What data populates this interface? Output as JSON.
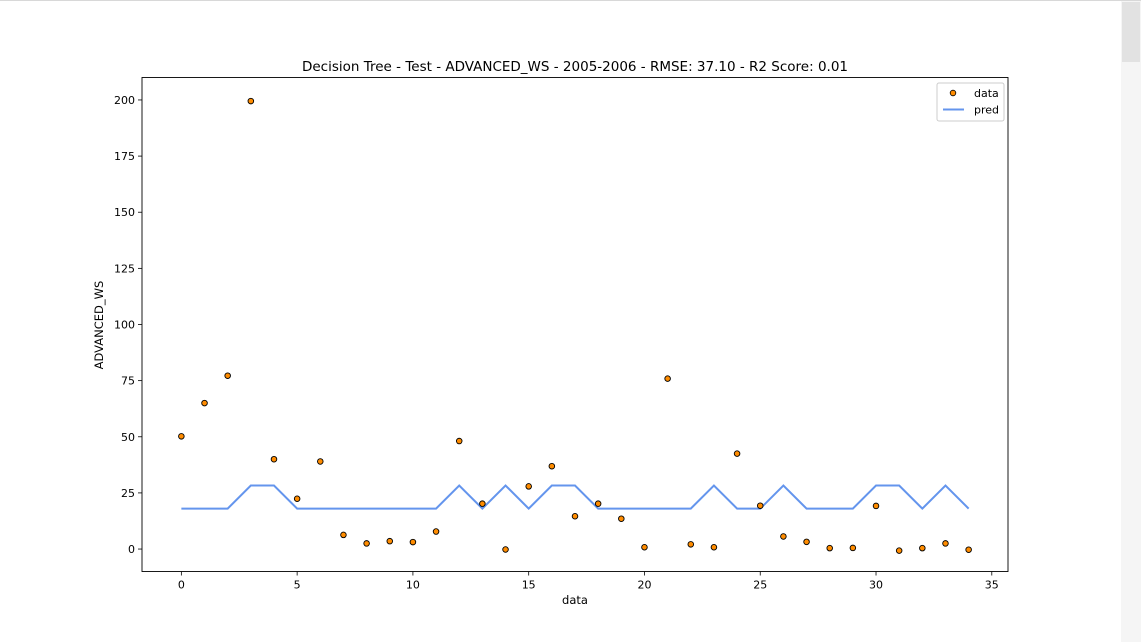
{
  "chart_data": {
    "type": "scatter",
    "title": "Decision Tree - Test - ADVANCED_WS - 2005-2006 - RMSE: 37.10 - R2 Score: 0.01",
    "xlabel": "data",
    "ylabel": "ADVANCED_WS",
    "xlim": [
      -1.7,
      35.7
    ],
    "ylim": [
      -10,
      210
    ],
    "xticks": [
      0,
      5,
      10,
      15,
      20,
      25,
      30,
      35
    ],
    "yticks": [
      0,
      25,
      50,
      75,
      100,
      125,
      150,
      175,
      200
    ],
    "legend_position": "top-right",
    "series": [
      {
        "name": "data",
        "kind": "scatter",
        "color": "#ff8c00",
        "edge_color": "#000000",
        "x": [
          0,
          1,
          2,
          3,
          4,
          5,
          6,
          7,
          8,
          9,
          10,
          11,
          12,
          13,
          14,
          15,
          16,
          17,
          18,
          19,
          20,
          21,
          22,
          23,
          24,
          25,
          26,
          27,
          28,
          29,
          30,
          31,
          32,
          33,
          34
        ],
        "y": [
          50.2,
          65.0,
          77.2,
          199.5,
          40.0,
          22.4,
          39.0,
          6.3,
          2.5,
          3.5,
          3.1,
          7.8,
          48.1,
          20.2,
          -0.2,
          27.9,
          36.9,
          14.6,
          20.2,
          13.5,
          0.8,
          75.9,
          2.1,
          0.8,
          42.5,
          19.3,
          5.6,
          3.2,
          0.4,
          0.5,
          19.2,
          -0.7,
          0.4,
          2.5,
          -0.3
        ]
      },
      {
        "name": "pred",
        "kind": "line",
        "color": "#6495ed",
        "x": [
          0,
          1,
          2,
          3,
          4,
          5,
          6,
          7,
          8,
          9,
          10,
          11,
          12,
          13,
          14,
          15,
          16,
          17,
          18,
          19,
          20,
          21,
          22,
          23,
          24,
          25,
          26,
          27,
          28,
          29,
          30,
          31,
          32,
          33,
          34
        ],
        "y": [
          18,
          18,
          18,
          28.3,
          28.3,
          18,
          18,
          18,
          18,
          18,
          18,
          18,
          28.3,
          18,
          28.3,
          18,
          28.3,
          28.3,
          18,
          18,
          18,
          18,
          18,
          28.3,
          18,
          18,
          28.3,
          18,
          18,
          18,
          28.3,
          28.3,
          18,
          28.3,
          18
        ]
      }
    ]
  }
}
